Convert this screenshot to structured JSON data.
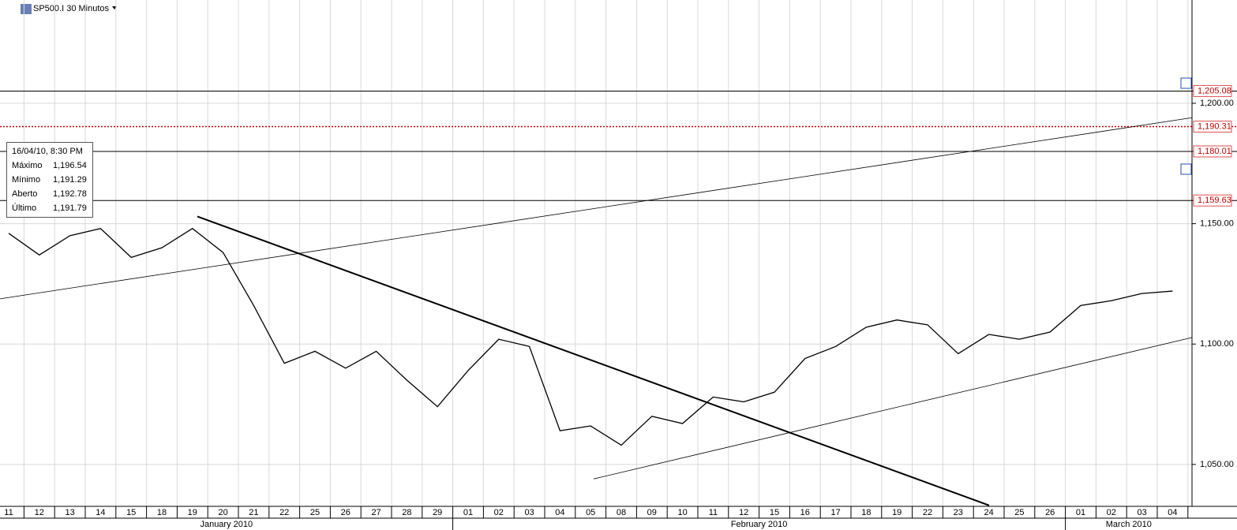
{
  "chart_data": {
    "type": "line",
    "title": "SP500.I 30 Minutos",
    "categories": [
      "11",
      "12",
      "13",
      "14",
      "15",
      "18",
      "19",
      "20",
      "21",
      "22",
      "25",
      "26",
      "27",
      "28",
      "29",
      "01",
      "02",
      "03",
      "04",
      "05",
      "08",
      "09",
      "10",
      "11",
      "12",
      "15",
      "16",
      "17",
      "18",
      "19",
      "22",
      "23",
      "24",
      "25",
      "26",
      "01",
      "02",
      "03",
      "04"
    ],
    "months": [
      "January 2010",
      "February 2010",
      "March 2010"
    ],
    "series": [
      {
        "name": "SP500.I",
        "color": "#000000",
        "values": [
          1146,
          1137,
          1145,
          1148,
          1136,
          1140,
          1148,
          1138,
          1116,
          1092,
          1097,
          1090,
          1097,
          1085,
          1074,
          1089,
          1102,
          1099,
          1064,
          1066,
          1058,
          1070,
          1067,
          1078,
          1076,
          1080,
          1094,
          1099,
          1107,
          1110,
          1108,
          1096,
          1104,
          1102,
          1105,
          1116,
          1118,
          1121,
          1122
        ]
      }
    ],
    "ylim": [
      1032.6,
      1242.9
    ],
    "yticks": [
      {
        "value": 1050,
        "label": "1,050.00"
      },
      {
        "value": 1100,
        "label": "1,100.00"
      },
      {
        "value": 1150,
        "label": "1,150.00"
      },
      {
        "value": 1200,
        "label": "1,200.00"
      }
    ],
    "grid": true,
    "levels": [
      {
        "value": 1205.08,
        "label": "1,205.08",
        "style": "solid",
        "color": "#000000"
      },
      {
        "value": 1190.31,
        "label": "1,190.31",
        "style": "dotted",
        "color": "#cc0000"
      },
      {
        "value": 1180.01,
        "label": "1,180.01",
        "style": "solid",
        "color": "#000000"
      },
      {
        "value": 1159.63,
        "label": "1,159.63",
        "style": "solid",
        "color": "#000000"
      }
    ],
    "trendlines": [
      {
        "x": [
          -0.28,
          38.63
        ],
        "y": [
          1118.8,
          1194
        ],
        "width": 0.8
      },
      {
        "x": [
          6.16,
          32.01
        ],
        "y": [
          1153,
          1033
        ],
        "width": 2
      },
      {
        "x": [
          19.1,
          38.63
        ],
        "y": [
          1044,
          1102.7
        ],
        "width": 0.8
      }
    ]
  },
  "info_box": {
    "date": "16/04/10, 8:30 PM",
    "rows": [
      [
        "Máximo",
        "1,196.54"
      ],
      [
        "Mínimo",
        "1,191.29"
      ],
      [
        "Aberto",
        "1,192.78"
      ],
      [
        "Último",
        "1,191.79"
      ]
    ]
  }
}
